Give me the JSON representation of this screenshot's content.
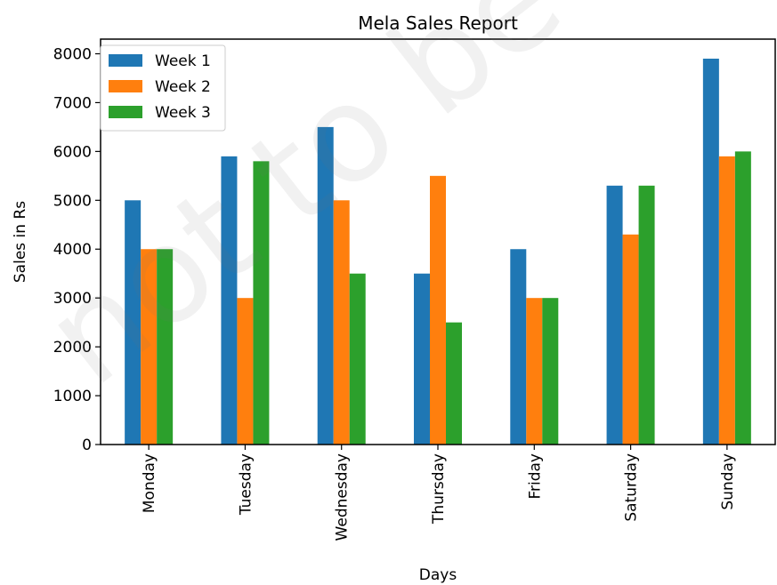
{
  "watermark_text": "not to be republished",
  "chart_data": {
    "type": "bar",
    "title": "Mela Sales Report",
    "xlabel": "Days",
    "ylabel": "Sales in Rs",
    "categories": [
      "Monday",
      "Tuesday",
      "Wednesday",
      "Thursday",
      "Friday",
      "Saturday",
      "Sunday"
    ],
    "series": [
      {
        "name": "Week 1",
        "color": "#1f77b4",
        "values": [
          5000,
          5900,
          6500,
          3500,
          4000,
          5300,
          7900
        ]
      },
      {
        "name": "Week 2",
        "color": "#ff7f0e",
        "values": [
          4000,
          3000,
          5000,
          5500,
          3000,
          4300,
          5900
        ]
      },
      {
        "name": "Week 3",
        "color": "#2ca02c",
        "values": [
          4000,
          5800,
          3500,
          2500,
          3000,
          5300,
          6000
        ]
      }
    ],
    "ylim": [
      0,
      8300
    ],
    "yticks": [
      0,
      1000,
      2000,
      3000,
      4000,
      5000,
      6000,
      7000,
      8000
    ],
    "legend_position": "top-left",
    "grid": false
  }
}
